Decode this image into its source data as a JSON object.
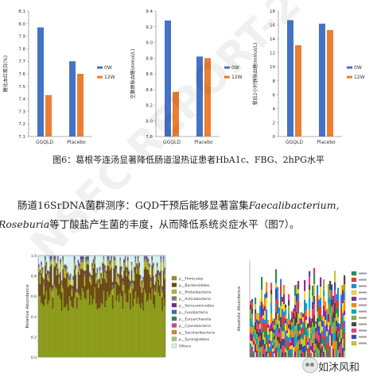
{
  "chart_data": [
    {
      "type": "bar",
      "categories": [
        "GGQLD",
        "Placebo"
      ],
      "series": [
        {
          "name": "0W",
          "values": [
            7.97,
            7.7
          ],
          "color": "#4472c4"
        },
        {
          "name": "12W",
          "values": [
            7.43,
            7.6
          ],
          "color": "#ed7d31"
        }
      ],
      "ylabel": "糖化血红蛋白(%)",
      "ylim": [
        7.1,
        8.1
      ],
      "yticks": [
        7.1,
        7.2,
        7.3,
        7.4,
        7.5,
        7.6,
        7.7,
        7.8,
        7.9,
        8.0,
        8.1
      ],
      "grid": false,
      "legend": "right"
    },
    {
      "type": "bar",
      "categories": [
        "GGQLD",
        "Placebo"
      ],
      "series": [
        {
          "name": "0W",
          "values": [
            9.28,
            8.82
          ],
          "color": "#4472c4"
        },
        {
          "name": "12W",
          "values": [
            8.37,
            8.8
          ],
          "color": "#ed7d31"
        }
      ],
      "ylabel": "空腹静脉血糖(mmol/L)",
      "ylim": [
        7.8,
        9.4
      ],
      "yticks": [
        7.8,
        8.0,
        8.2,
        8.4,
        8.6,
        8.8,
        9.0,
        9.2,
        9.4
      ],
      "grid": false,
      "legend": "right"
    },
    {
      "type": "bar",
      "categories": [
        "GGQLD",
        "Placebo"
      ],
      "series": [
        {
          "name": "0W",
          "values": [
            16.7,
            16.2
          ],
          "color": "#4472c4"
        },
        {
          "name": "12W",
          "values": [
            13.1,
            15.3
          ],
          "color": "#ed7d31"
        }
      ],
      "ylabel": "餐后2小时静脉血糖(mmol/L)",
      "ylim": [
        0,
        18
      ],
      "yticks": [
        0,
        2,
        4,
        6,
        8,
        10,
        12,
        14,
        16,
        18
      ],
      "grid": false,
      "legend": "right"
    }
  ],
  "abundance_left": {
    "ylabel": "Relative Abundance",
    "yticks": [
      "0.0",
      "0.2",
      "0.4",
      "0.6",
      "0.8",
      "1.0"
    ],
    "legend": [
      {
        "label": "p__Firmicutes",
        "color": "#8b9b1a"
      },
      {
        "label": "p__Bacteroidetes",
        "color": "#6b4a16"
      },
      {
        "label": "p__Proteobacteria",
        "color": "#b5b52a"
      },
      {
        "label": "p__Actinobacteria",
        "color": "#7a7a7a"
      },
      {
        "label": "p__Verrucomicrobia",
        "color": "#6e2b8a"
      },
      {
        "label": "p__Fusobacteria",
        "color": "#3c6fb0"
      },
      {
        "label": "p__Euryarchaeota",
        "color": "#2e8b57"
      },
      {
        "label": "p__Cyanobacteria",
        "color": "#c24a8c"
      },
      {
        "label": "p__Saccharibacteria",
        "color": "#d18b2c"
      },
      {
        "label": "p__Synergistetes",
        "color": "#9bd16b"
      },
      {
        "label": "Others",
        "color": "#d7f0f0"
      }
    ]
  },
  "abundance_right": {
    "ylabel": "Absolute Abundance"
  },
  "figure_caption": "图6：葛根芩连汤显著降低肠道湿热证患者HbA1c、FBG、2hPG水平",
  "paragraph": {
    "line1_prefix": "肠道16SrDNA菌群测序：GQD干预后能够显著富集",
    "line1_italic": "Faecalibacterium,",
    "line2_italic": "Roseburia",
    "line2_rest": "等丁酸盐产生菌的丰度，从而降低系统炎症水平（图7）。"
  },
  "watermark": "NSFC REPORT-2",
  "brand": "如沐风和"
}
